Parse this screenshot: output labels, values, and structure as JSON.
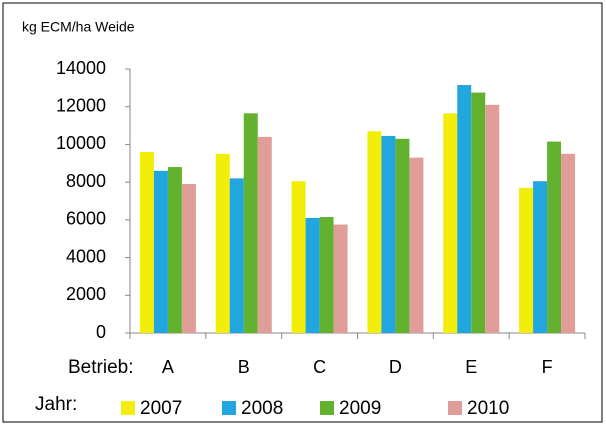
{
  "chart_data": {
    "type": "bar",
    "y_axis_label": "kg ECM/ha Weide",
    "x_label": "Betrieb:",
    "legend_title": "Jahr:",
    "categories": [
      "A",
      "B",
      "C",
      "D",
      "E",
      "F"
    ],
    "series": [
      {
        "name": "2007",
        "color": "#f2ee0a",
        "values": [
          9600,
          9500,
          8050,
          10700,
          11650,
          7700
        ]
      },
      {
        "name": "2008",
        "color": "#22a6df",
        "values": [
          8600,
          8200,
          6100,
          10450,
          13150,
          8050
        ]
      },
      {
        "name": "2009",
        "color": "#63b22f",
        "values": [
          8800,
          11650,
          6150,
          10300,
          12750,
          10150
        ]
      },
      {
        "name": "2010",
        "color": "#e19d97",
        "values": [
          7900,
          10400,
          5750,
          9300,
          12100,
          9500
        ]
      }
    ],
    "ylim": [
      0,
      14000
    ],
    "yticks": [
      0,
      2000,
      4000,
      6000,
      8000,
      10000,
      12000,
      14000
    ],
    "grid": false
  }
}
